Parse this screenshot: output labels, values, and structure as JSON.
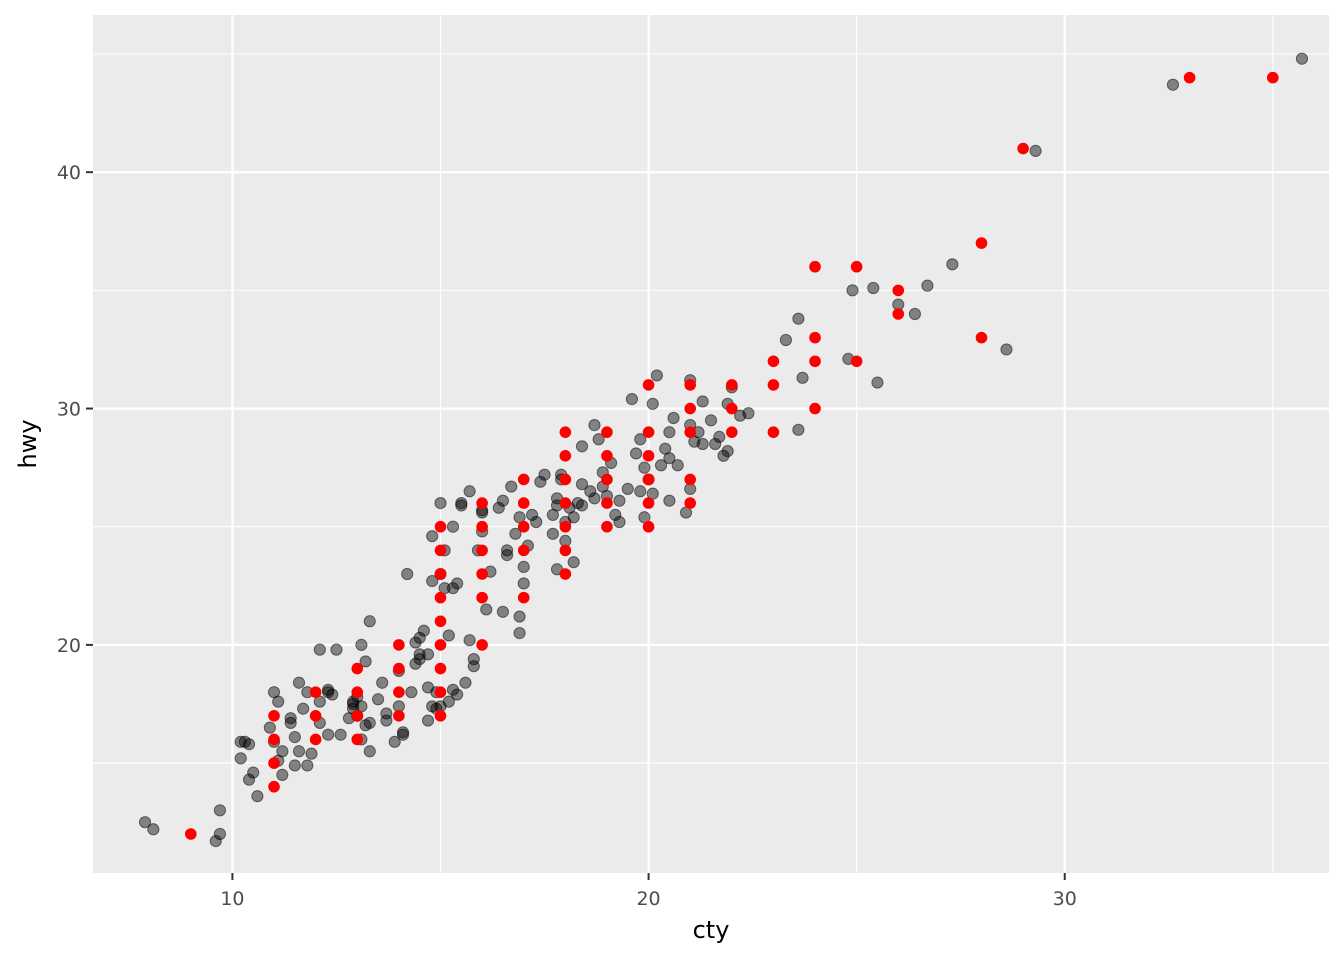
{
  "chart_data": {
    "type": "scatter",
    "title": "",
    "xlabel": "cty",
    "ylabel": "hwy",
    "xlim": [
      6.65,
      36.35
    ],
    "ylim": [
      10.35,
      46.65
    ],
    "xticks": [
      10,
      20,
      30
    ],
    "yticks": [
      20,
      30,
      40
    ],
    "grid": true,
    "legend": "none",
    "colors": {
      "panel": "#EBEBEB",
      "grid": "#FFFFFF",
      "jitter_points": "#000000",
      "data_points": "#FF0000",
      "tick_text": "#4D4D4D",
      "axis_title": "#000000"
    },
    "series": [
      {
        "values": [
          [
            7.9,
            12.5
          ],
          [
            8.1,
            12.2
          ],
          [
            9.7,
            13.0
          ],
          [
            9.6,
            11.7
          ],
          [
            9.7,
            12.0
          ],
          [
            10.2,
            15.9
          ],
          [
            10.3,
            15.9
          ],
          [
            10.4,
            15.8
          ],
          [
            10.2,
            15.2
          ],
          [
            10.5,
            14.6
          ],
          [
            10.4,
            14.3
          ],
          [
            10.6,
            13.6
          ],
          [
            10.9,
            16.5
          ],
          [
            11.0,
            18.0
          ],
          [
            11.1,
            17.6
          ],
          [
            11.0,
            15.9
          ],
          [
            11.2,
            15.5
          ],
          [
            11.2,
            14.5
          ],
          [
            11.1,
            15.1
          ],
          [
            11.4,
            16.9
          ],
          [
            11.4,
            16.7
          ],
          [
            11.6,
            18.4
          ],
          [
            11.5,
            16.1
          ],
          [
            11.6,
            15.5
          ],
          [
            11.7,
            17.3
          ],
          [
            11.5,
            14.9
          ],
          [
            11.8,
            18.0
          ],
          [
            11.8,
            14.9
          ],
          [
            11.9,
            15.4
          ],
          [
            12.1,
            17.6
          ],
          [
            12.1,
            16.7
          ],
          [
            12.1,
            19.8
          ],
          [
            12.3,
            18.0
          ],
          [
            12.3,
            18.1
          ],
          [
            12.4,
            17.9
          ],
          [
            12.5,
            19.8
          ],
          [
            12.3,
            16.2
          ],
          [
            12.6,
            16.2
          ],
          [
            12.8,
            16.9
          ],
          [
            12.9,
            17.3
          ],
          [
            12.9,
            17.6
          ],
          [
            12.9,
            17.5
          ],
          [
            13.0,
            17.8
          ],
          [
            13.1,
            20.0
          ],
          [
            13.0,
            17.0
          ],
          [
            13.1,
            16.0
          ],
          [
            13.2,
            19.3
          ],
          [
            13.1,
            17.4
          ],
          [
            13.2,
            16.6
          ],
          [
            13.3,
            15.5
          ],
          [
            13.3,
            21.0
          ],
          [
            13.3,
            16.7
          ],
          [
            13.5,
            17.7
          ],
          [
            13.6,
            18.4
          ],
          [
            13.7,
            16.8
          ],
          [
            13.7,
            17.1
          ],
          [
            13.9,
            15.9
          ],
          [
            14.0,
            17.4
          ],
          [
            14.0,
            18.9
          ],
          [
            14.1,
            16.2
          ],
          [
            14.1,
            16.3
          ],
          [
            14.2,
            23.0
          ],
          [
            14.3,
            18.0
          ],
          [
            14.4,
            19.2
          ],
          [
            14.5,
            19.6
          ],
          [
            14.4,
            20.1
          ],
          [
            14.5,
            19.4
          ],
          [
            14.5,
            20.3
          ],
          [
            14.6,
            20.6
          ],
          [
            14.7,
            18.2
          ],
          [
            14.7,
            16.8
          ],
          [
            14.7,
            19.6
          ],
          [
            14.8,
            17.4
          ],
          [
            14.8,
            22.7
          ],
          [
            14.8,
            24.6
          ],
          [
            14.9,
            18.0
          ],
          [
            14.9,
            17.3
          ],
          [
            15.0,
            23.0
          ],
          [
            15.0,
            26.0
          ],
          [
            15.0,
            17.4
          ],
          [
            15.1,
            22.4
          ],
          [
            15.2,
            20.4
          ],
          [
            15.2,
            17.6
          ],
          [
            15.1,
            24.0
          ],
          [
            15.3,
            25.0
          ],
          [
            15.3,
            22.4
          ],
          [
            15.3,
            18.1
          ],
          [
            15.4,
            17.9
          ],
          [
            15.4,
            22.6
          ],
          [
            15.5,
            25.9
          ],
          [
            15.5,
            26.0
          ],
          [
            15.6,
            18.4
          ],
          [
            15.7,
            20.2
          ],
          [
            15.7,
            26.5
          ],
          [
            15.8,
            19.4
          ],
          [
            15.8,
            19.1
          ],
          [
            15.9,
            24.0
          ],
          [
            16.0,
            25.7
          ],
          [
            16.0,
            25.6
          ],
          [
            16.0,
            24.8
          ],
          [
            16.1,
            21.5
          ],
          [
            16.2,
            23.1
          ],
          [
            16.4,
            25.8
          ],
          [
            16.5,
            26.1
          ],
          [
            16.5,
            21.4
          ],
          [
            16.6,
            24.0
          ],
          [
            16.6,
            23.8
          ],
          [
            16.7,
            26.7
          ],
          [
            16.8,
            24.7
          ],
          [
            16.9,
            20.5
          ],
          [
            16.9,
            21.2
          ],
          [
            16.9,
            25.4
          ],
          [
            17.0,
            22.6
          ],
          [
            17.0,
            23.3
          ],
          [
            17.1,
            24.2
          ],
          [
            17.2,
            25.5
          ],
          [
            17.3,
            25.2
          ],
          [
            17.4,
            26.9
          ],
          [
            17.5,
            27.2
          ],
          [
            17.7,
            24.7
          ],
          [
            17.7,
            25.5
          ],
          [
            17.8,
            25.9
          ],
          [
            17.8,
            26.2
          ],
          [
            17.8,
            23.2
          ],
          [
            17.9,
            27.2
          ],
          [
            17.9,
            27.0
          ],
          [
            18.0,
            25.2
          ],
          [
            18.0,
            24.4
          ],
          [
            18.1,
            25.8
          ],
          [
            18.2,
            25.4
          ],
          [
            18.2,
            23.5
          ],
          [
            18.3,
            26.0
          ],
          [
            18.4,
            25.9
          ],
          [
            18.4,
            28.4
          ],
          [
            18.4,
            26.8
          ],
          [
            18.6,
            26.5
          ],
          [
            18.7,
            26.2
          ],
          [
            18.7,
            29.3
          ],
          [
            18.8,
            28.7
          ],
          [
            18.9,
            27.3
          ],
          [
            18.9,
            26.7
          ],
          [
            19.0,
            26.3
          ],
          [
            19.1,
            27.7
          ],
          [
            19.2,
            25.5
          ],
          [
            19.3,
            25.2
          ],
          [
            19.3,
            26.1
          ],
          [
            19.5,
            26.6
          ],
          [
            19.6,
            30.4
          ],
          [
            19.7,
            28.1
          ],
          [
            19.8,
            26.5
          ],
          [
            19.8,
            28.7
          ],
          [
            19.9,
            25.4
          ],
          [
            19.9,
            27.5
          ],
          [
            20.0,
            27.0
          ],
          [
            20.1,
            26.4
          ],
          [
            20.1,
            30.2
          ],
          [
            20.2,
            31.4
          ],
          [
            20.3,
            27.6
          ],
          [
            20.4,
            28.3
          ],
          [
            20.5,
            29.0
          ],
          [
            20.5,
            27.9
          ],
          [
            20.5,
            26.1
          ],
          [
            20.6,
            29.6
          ],
          [
            20.7,
            27.6
          ],
          [
            20.9,
            25.6
          ],
          [
            21.0,
            31.2
          ],
          [
            21.0,
            29.3
          ],
          [
            21.0,
            26.6
          ],
          [
            21.1,
            28.6
          ],
          [
            21.2,
            29.0
          ],
          [
            21.3,
            28.5
          ],
          [
            21.3,
            30.3
          ],
          [
            21.5,
            29.5
          ],
          [
            21.6,
            28.5
          ],
          [
            21.7,
            28.8
          ],
          [
            21.8,
            28.0
          ],
          [
            21.9,
            30.2
          ],
          [
            21.9,
            28.2
          ],
          [
            22.0,
            30.9
          ],
          [
            22.2,
            29.7
          ],
          [
            22.4,
            29.8
          ],
          [
            23.3,
            32.9
          ],
          [
            23.6,
            33.8
          ],
          [
            23.6,
            29.1
          ],
          [
            23.7,
            31.3
          ],
          [
            24.8,
            32.1
          ],
          [
            24.9,
            35.0
          ],
          [
            25.4,
            35.1
          ],
          [
            25.5,
            31.1
          ],
          [
            26.0,
            34.4
          ],
          [
            26.4,
            34.0
          ],
          [
            26.7,
            35.2
          ],
          [
            27.3,
            36.1
          ],
          [
            28.6,
            32.5
          ],
          [
            29.3,
            40.9
          ],
          [
            32.6,
            43.7
          ],
          [
            35.7,
            44.8
          ]
        ]
      },
      {
        "values": [
          [
            9,
            12
          ],
          [
            11,
            14
          ],
          [
            11,
            15
          ],
          [
            11,
            16
          ],
          [
            11,
            17
          ],
          [
            12,
            16
          ],
          [
            12,
            17
          ],
          [
            12,
            18
          ],
          [
            13,
            16
          ],
          [
            13,
            17
          ],
          [
            13,
            18
          ],
          [
            13,
            19
          ],
          [
            14,
            17
          ],
          [
            14,
            18
          ],
          [
            14,
            19
          ],
          [
            14,
            20
          ],
          [
            15,
            17
          ],
          [
            15,
            18
          ],
          [
            15,
            19
          ],
          [
            15,
            20
          ],
          [
            15,
            21
          ],
          [
            15,
            22
          ],
          [
            15,
            23
          ],
          [
            15,
            24
          ],
          [
            15,
            25
          ],
          [
            16,
            20
          ],
          [
            16,
            22
          ],
          [
            16,
            23
          ],
          [
            16,
            24
          ],
          [
            16,
            25
          ],
          [
            16,
            26
          ],
          [
            17,
            22
          ],
          [
            17,
            24
          ],
          [
            17,
            25
          ],
          [
            17,
            26
          ],
          [
            17,
            27
          ],
          [
            18,
            23
          ],
          [
            18,
            24
          ],
          [
            18,
            25
          ],
          [
            18,
            26
          ],
          [
            18,
            27
          ],
          [
            18,
            28
          ],
          [
            18,
            29
          ],
          [
            19,
            25
          ],
          [
            19,
            26
          ],
          [
            19,
            27
          ],
          [
            19,
            28
          ],
          [
            19,
            29
          ],
          [
            20,
            25
          ],
          [
            20,
            26
          ],
          [
            20,
            27
          ],
          [
            20,
            28
          ],
          [
            20,
            29
          ],
          [
            20,
            31
          ],
          [
            21,
            26
          ],
          [
            21,
            27
          ],
          [
            21,
            29
          ],
          [
            21,
            30
          ],
          [
            21,
            31
          ],
          [
            22,
            29
          ],
          [
            22,
            30
          ],
          [
            22,
            31
          ],
          [
            23,
            29
          ],
          [
            23,
            31
          ],
          [
            23,
            32
          ],
          [
            24,
            30
          ],
          [
            24,
            32
          ],
          [
            24,
            33
          ],
          [
            24,
            36
          ],
          [
            25,
            32
          ],
          [
            25,
            36
          ],
          [
            26,
            34
          ],
          [
            26,
            35
          ],
          [
            28,
            33
          ],
          [
            28,
            37
          ],
          [
            29,
            41
          ],
          [
            33,
            44
          ],
          [
            35,
            44
          ]
        ]
      }
    ]
  }
}
